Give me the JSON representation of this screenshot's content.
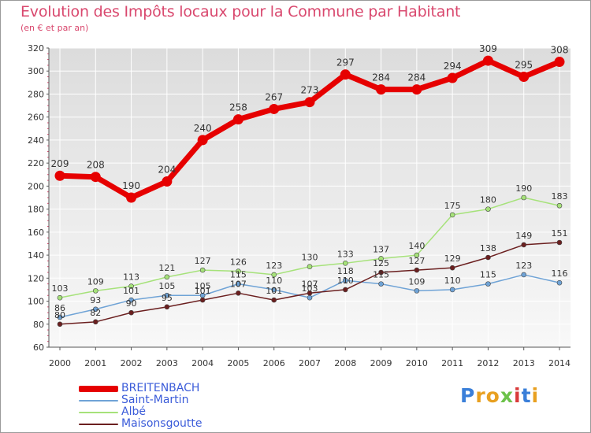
{
  "header": {
    "title": "Evolution des Impôts locaux pour la Commune par Habitant",
    "subtitle": "(en € et par an)"
  },
  "logo": {
    "letters": [
      "P",
      "r",
      "o",
      "x",
      "i",
      "t",
      "i"
    ],
    "colors": [
      "#3a7fd9",
      "#e8a020",
      "#e8a020",
      "#6cc24a",
      "#d93a3a",
      "#3a7fd9",
      "#e8a020"
    ]
  },
  "chart_data": {
    "type": "line",
    "x": [
      2000,
      2001,
      2002,
      2003,
      2004,
      2005,
      2006,
      2007,
      2008,
      2009,
      2010,
      2011,
      2012,
      2013,
      2014
    ],
    "ylim": [
      60,
      320
    ],
    "yticks": [
      60,
      80,
      100,
      120,
      140,
      160,
      180,
      200,
      220,
      240,
      260,
      280,
      300,
      320
    ],
    "grid": true,
    "legend_position": "bottom-left",
    "series": [
      {
        "name": "BREITENBACH",
        "color": "#e60000",
        "values": [
          209,
          208,
          190,
          204,
          240,
          258,
          267,
          273,
          297,
          284,
          284,
          294,
          309,
          295,
          308
        ]
      },
      {
        "name": "Saint-Martin",
        "color": "#6fa3d6",
        "values": [
          86,
          93,
          101,
          105,
          105,
          115,
          110,
          103,
          118,
          115,
          109,
          110,
          115,
          123,
          116
        ]
      },
      {
        "name": "Albé",
        "color": "#a6e27a",
        "values": [
          103,
          109,
          113,
          121,
          127,
          126,
          123,
          130,
          133,
          137,
          140,
          175,
          180,
          190,
          183
        ]
      },
      {
        "name": "Maisonsgoutte",
        "color": "#6b1f1f",
        "values": [
          80,
          82,
          90,
          95,
          101,
          107,
          101,
          107,
          110,
          125,
          127,
          129,
          138,
          149,
          151
        ]
      }
    ]
  }
}
